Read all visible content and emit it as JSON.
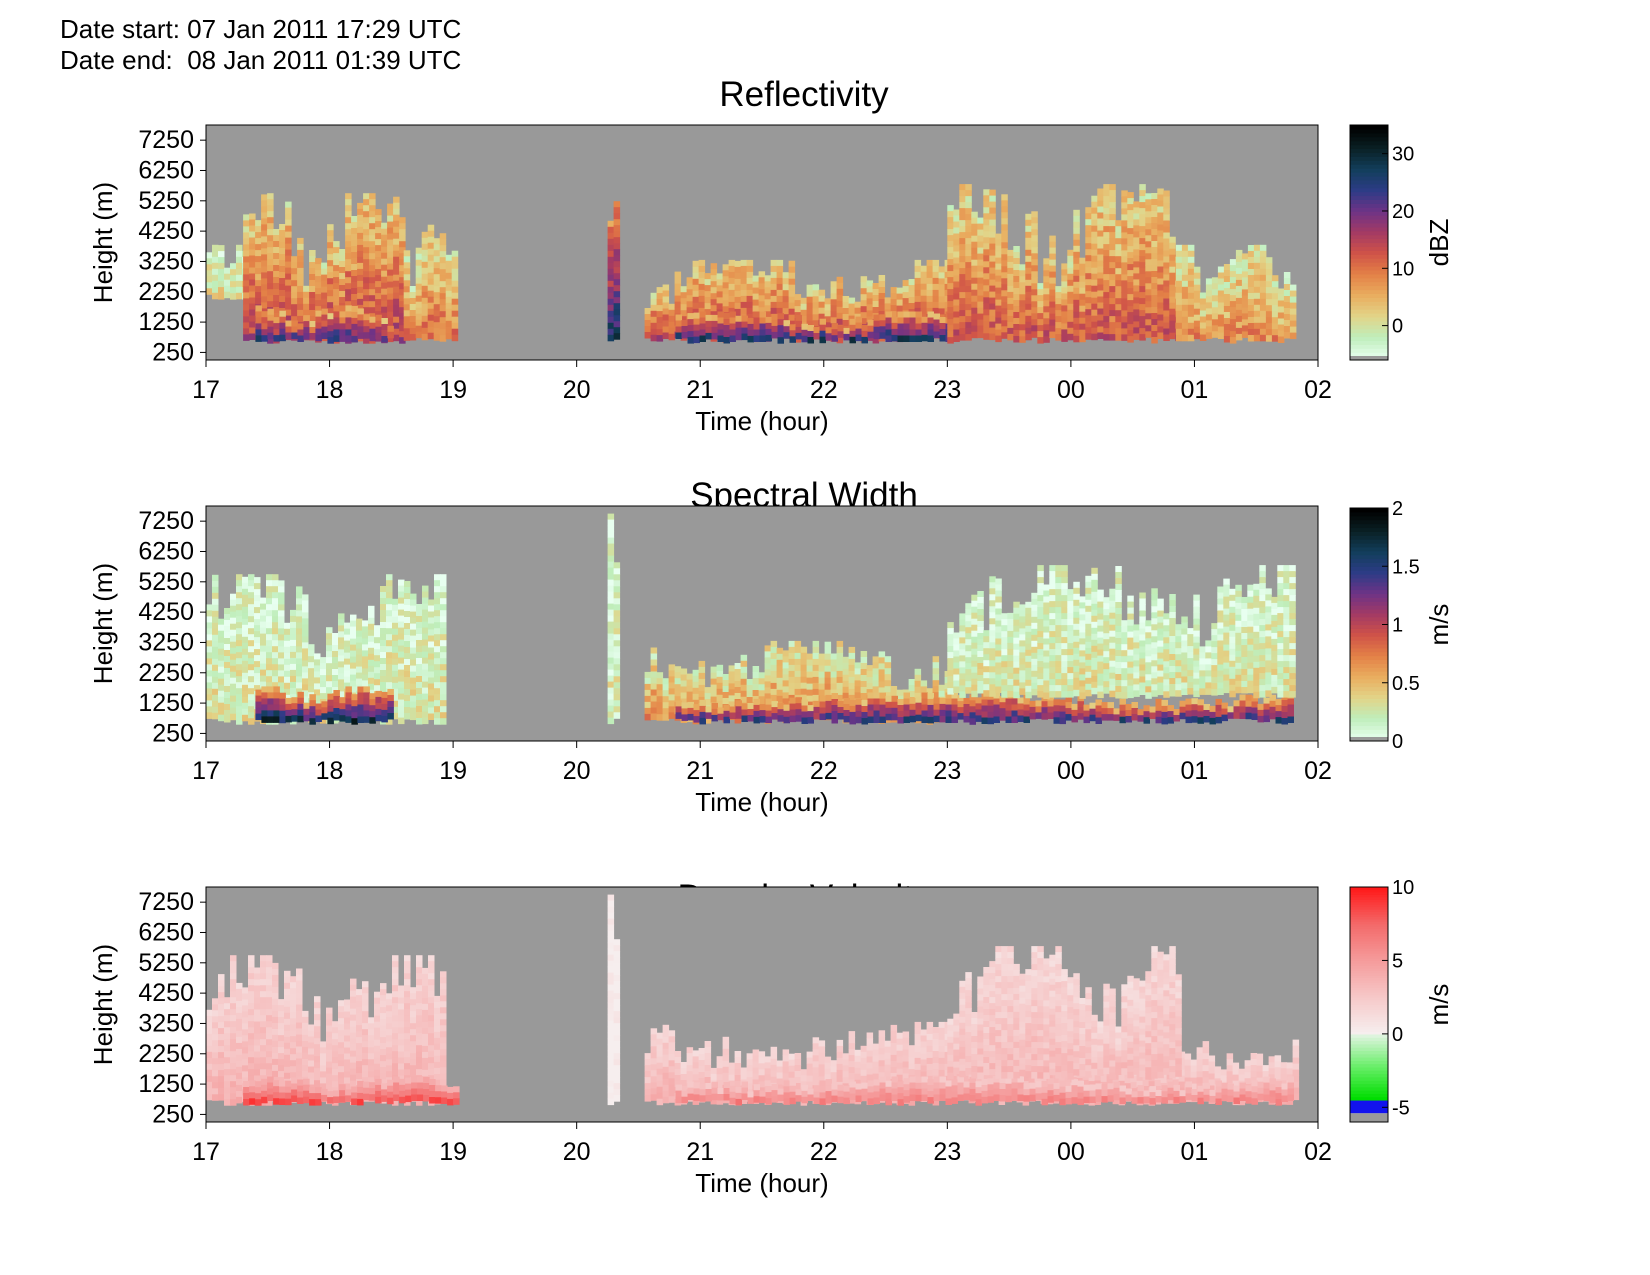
{
  "header": {
    "date_start": "Date start: 07 Jan 2011 17:29 UTC",
    "date_end": "Date end:  08 Jan 2011 01:39 UTC"
  },
  "colors": {
    "background": "#999999",
    "ref_scale": [
      "#e8fff0",
      "#bfeebb",
      "#e2d488",
      "#e9ad5f",
      "#e38147",
      "#d05348",
      "#a33a64",
      "#6e3386",
      "#2c3c86",
      "#123e5b",
      "#0a2024",
      "#000000"
    ],
    "sw_scale": [
      "#e8fff0",
      "#bfeebb",
      "#e2d488",
      "#e9ad5f",
      "#e38147",
      "#d05348",
      "#a33a64",
      "#6e3386",
      "#2c3c86",
      "#123e5b",
      "#0a2024",
      "#000000"
    ],
    "dv_scale_neg": [
      "#1212ee",
      "#00dd00",
      "#66ee66",
      "#ddf4dd"
    ],
    "dv_scale_pos": [
      "#f6eeee",
      "#f6c8c8",
      "#f59c9c",
      "#f36a6a",
      "#ff1a1a"
    ]
  },
  "chart_data": [
    {
      "type": "heatmap",
      "title": "Reflectivity",
      "xlabel": "Time (hour)",
      "ylabel": "Height (m)",
      "xticks": [
        "17",
        "18",
        "19",
        "20",
        "21",
        "22",
        "23",
        "00",
        "01",
        "02"
      ],
      "yticks": [
        "7250",
        "6250",
        "5250",
        "4250",
        "3250",
        "2250",
        "1250",
        "250"
      ],
      "xlim": [
        17,
        26
      ],
      "ylim": [
        0,
        7750
      ],
      "colorbar": {
        "label": "dBZ",
        "ticks": [
          "30",
          "20",
          "10",
          "0"
        ],
        "range": [
          -6,
          35
        ]
      },
      "echo_regions": [
        {
          "t0": 17.0,
          "t1": 17.3,
          "h0": 2200,
          "h1": 3800,
          "intensity": 0.15
        },
        {
          "t0": 17.3,
          "t1": 18.6,
          "h0": 750,
          "h1": 5500,
          "intensity": 0.45
        },
        {
          "t0": 17.4,
          "t1": 18.5,
          "h0": 750,
          "h1": 1800,
          "intensity": 0.65
        },
        {
          "t0": 18.6,
          "t1": 19.0,
          "h0": 750,
          "h1": 4700,
          "intensity": 0.35
        },
        {
          "t0": 20.25,
          "t1": 20.32,
          "h0": 750,
          "h1": 7500,
          "intensity": 0.7
        },
        {
          "t0": 20.55,
          "t1": 23.0,
          "h0": 750,
          "h1": 3300,
          "intensity": 0.45
        },
        {
          "t0": 20.8,
          "t1": 23.0,
          "h0": 750,
          "h1": 1600,
          "intensity": 0.7
        },
        {
          "t0": 23.0,
          "t1": 24.85,
          "h0": 750,
          "h1": 5800,
          "intensity": 0.4
        },
        {
          "t0": 24.85,
          "t1": 25.8,
          "h0": 750,
          "h1": 3800,
          "intensity": 0.3
        }
      ]
    },
    {
      "type": "heatmap",
      "title": "Spectral Width",
      "xlabel": "Time (hour)",
      "ylabel": "Height (m)",
      "xticks": [
        "17",
        "18",
        "19",
        "20",
        "21",
        "22",
        "23",
        "00",
        "01",
        "02"
      ],
      "yticks": [
        "7250",
        "6250",
        "5250",
        "4250",
        "3250",
        "2250",
        "1250",
        "250"
      ],
      "xlim": [
        17,
        26
      ],
      "ylim": [
        0,
        7750
      ],
      "colorbar": {
        "label": "m/s",
        "ticks": [
          "2",
          "1.5",
          "1",
          "0.5",
          "0"
        ],
        "range": [
          0,
          2
        ]
      },
      "echo_regions": [
        {
          "t0": 17.0,
          "t1": 18.9,
          "h0": 750,
          "h1": 5500,
          "intensity": 0.12
        },
        {
          "t0": 17.4,
          "t1": 18.5,
          "h0": 750,
          "h1": 1800,
          "intensity": 0.75
        },
        {
          "t0": 20.25,
          "t1": 20.32,
          "h0": 750,
          "h1": 7500,
          "intensity": 0.1
        },
        {
          "t0": 20.55,
          "t1": 23.0,
          "h0": 750,
          "h1": 3300,
          "intensity": 0.3
        },
        {
          "t0": 20.8,
          "t1": 25.8,
          "h0": 750,
          "h1": 1600,
          "intensity": 0.65
        },
        {
          "t0": 23.0,
          "t1": 25.8,
          "h0": 1600,
          "h1": 5800,
          "intensity": 0.12
        }
      ]
    },
    {
      "type": "heatmap",
      "title": "Doppler Velocity",
      "xlabel": "Time (hour)",
      "ylabel": "Height (m)",
      "xticks": [
        "17",
        "18",
        "19",
        "20",
        "21",
        "22",
        "23",
        "00",
        "01",
        "02"
      ],
      "yticks": [
        "7250",
        "6250",
        "5250",
        "4250",
        "3250",
        "2250",
        "1250",
        "250"
      ],
      "xlim": [
        17,
        26
      ],
      "ylim": [
        0,
        7750
      ],
      "colorbar": {
        "label": "m/s",
        "ticks": [
          "10",
          "5",
          "0",
          "-5"
        ],
        "range": [
          -6,
          10
        ]
      },
      "echo_regions": [
        {
          "t0": 17.0,
          "t1": 18.9,
          "h0": 750,
          "h1": 5500,
          "intensity": 0.35
        },
        {
          "t0": 17.3,
          "t1": 19.0,
          "h0": 750,
          "h1": 1500,
          "intensity": 0.8
        },
        {
          "t0": 20.25,
          "t1": 20.32,
          "h0": 750,
          "h1": 7500,
          "intensity": 0.0
        },
        {
          "t0": 20.55,
          "t1": 25.8,
          "h0": 750,
          "h1": 3300,
          "intensity": 0.35
        },
        {
          "t0": 20.8,
          "t1": 25.8,
          "h0": 750,
          "h1": 1500,
          "intensity": 0.6
        },
        {
          "t0": 23.0,
          "t1": 24.85,
          "h0": 1600,
          "h1": 5800,
          "intensity": 0.3
        }
      ]
    }
  ]
}
